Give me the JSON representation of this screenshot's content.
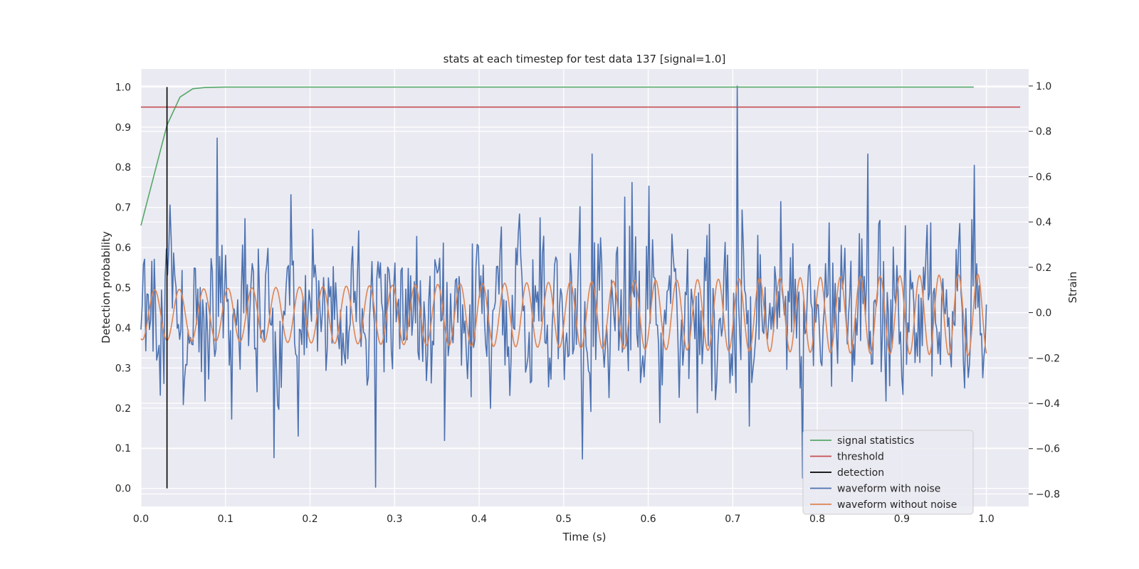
{
  "chart_data": {
    "type": "line",
    "title": "stats at each timestep for test data 137 [signal=1.0]",
    "xlabel": "Time (s)",
    "ylabel_left": "Detection probability",
    "ylabel_right": "Strain",
    "xlim": [
      0.0,
      1.05
    ],
    "ylim_left": [
      -0.045,
      1.045
    ],
    "ylim_right": [
      -0.855,
      1.075
    ],
    "x_ticks": [
      "0.0",
      "0.1",
      "0.2",
      "0.3",
      "0.4",
      "0.5",
      "0.6",
      "0.7",
      "0.8",
      "0.9",
      "1.0"
    ],
    "y_left_ticks": [
      "0.0",
      "0.1",
      "0.2",
      "0.3",
      "0.4",
      "0.5",
      "0.6",
      "0.7",
      "0.8",
      "0.9",
      "1.0"
    ],
    "y_right_ticks": [
      "−0.8",
      "−0.6",
      "−0.4",
      "−0.2",
      "0.0",
      "0.2",
      "0.4",
      "0.6",
      "0.8",
      "1.0"
    ],
    "grid": true,
    "background": "#eaeaf2",
    "legend_position": "lower-right",
    "series": [
      {
        "name": "signal statistics",
        "color": "#55a868",
        "axis": "left",
        "x": [
          0.0,
          0.0154,
          0.0308,
          0.0462,
          0.0615,
          0.0769,
          0.1,
          0.2,
          0.4,
          0.6,
          0.8,
          0.985
        ],
        "y": [
          0.655,
          0.78,
          0.905,
          0.975,
          0.996,
          0.999,
          1.0,
          1.0,
          1.0,
          1.0,
          1.0,
          1.0
        ]
      },
      {
        "name": "threshold",
        "color": "#c44e52",
        "axis": "left",
        "x": [
          0.0,
          1.04
        ],
        "y": [
          0.95,
          0.95
        ]
      },
      {
        "name": "detection",
        "color": "#000000",
        "axis": "left",
        "x": [
          0.0308,
          0.0308
        ],
        "y": [
          0.0,
          1.0
        ]
      },
      {
        "name": "waveform with noise",
        "color": "#4c72b0",
        "axis": "right",
        "x_start": 0.0,
        "x_end": 1.0,
        "num_points": 700,
        "noise_std": 0.17,
        "seed": 137,
        "peaks": [
          {
            "x": 0.0895,
            "y": 0.77
          },
          {
            "x": 0.533,
            "y": 0.7
          },
          {
            "x": 0.705,
            "y": 1.0
          },
          {
            "x": 0.86,
            "y": 0.7
          },
          {
            "x": 0.985,
            "y": 0.65
          },
          {
            "x": 0.278,
            "y": -0.77
          },
          {
            "x": 0.158,
            "y": -0.64
          },
          {
            "x": 0.782,
            "y": -0.73
          }
        ]
      },
      {
        "name": "waveform without noise",
        "color": "#dd8452",
        "axis": "right",
        "x_start": 0.0,
        "x_end": 1.0,
        "num_points": 1200,
        "freq_hz_start": 34,
        "freq_hz_end": 44,
        "amp_start": 0.11,
        "amp_end": 0.18,
        "offset": -0.01,
        "phase": -1.9
      }
    ]
  }
}
